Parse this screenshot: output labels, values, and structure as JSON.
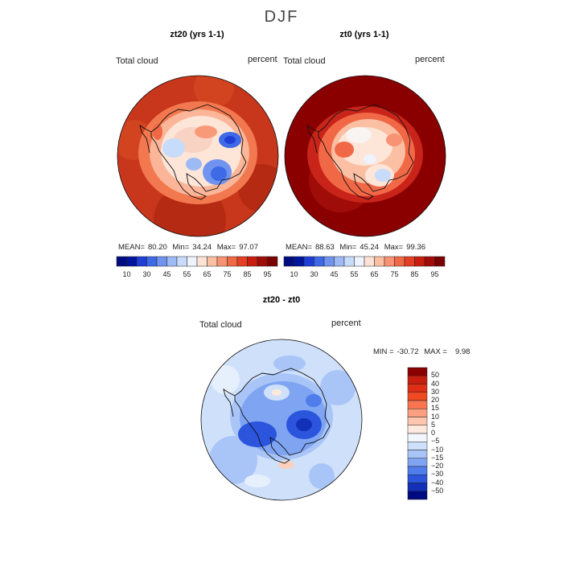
{
  "figure": {
    "title": "DJF"
  },
  "panels": [
    {
      "title": "zt20 (yrs 1-1)",
      "field_label": "Total cloud",
      "units": "percent",
      "stats": {
        "mean_label": "MEAN=",
        "mean": "80.20",
        "min_label": "Min=",
        "min": "34.24",
        "max_label": "Max=",
        "max": "97.07"
      }
    },
    {
      "title": "zt0 (yrs 1-1)",
      "field_label": "Total cloud",
      "units": "percent",
      "stats": {
        "mean_label": "MEAN=",
        "mean": "88.63",
        "min_label": "Min=",
        "min": "45.24",
        "max_label": "Max=",
        "max": "99.36"
      }
    },
    {
      "title": "zt20 - zt0",
      "field_label": "Total cloud",
      "units": "percent",
      "stats": {
        "min_label": "MIN =",
        "min": "-30.72",
        "max_label": "MAX =",
        "max": "9.98"
      }
    }
  ],
  "colorbar_abs": {
    "tick_labels": [
      "10",
      "30",
      "45",
      "55",
      "65",
      "75",
      "85",
      "95"
    ],
    "colors": [
      "#000d80",
      "#00149e",
      "#1f3ed6",
      "#3f6ae6",
      "#6f93ef",
      "#9dbaf5",
      "#c7dbfb",
      "#eef3fd",
      "#fde3d6",
      "#fbbfa3",
      "#f79273",
      "#f16847",
      "#e43f24",
      "#c81e0f",
      "#a00c08",
      "#7a0000"
    ]
  },
  "colorbar_diff": {
    "labels": [
      "50",
      "40",
      "30",
      "20",
      "15",
      "10",
      "5",
      "0",
      "−5",
      "−10",
      "−15",
      "−20",
      "−30",
      "−40",
      "−50"
    ],
    "colors": [
      "#8a0000",
      "#c81e0f",
      "#e02e16",
      "#ef4a22",
      "#f77550",
      "#fa9f80",
      "#fdc5ad",
      "#fde9dd",
      "#f2f6fd",
      "#cfe0fb",
      "#a9c5f7",
      "#7ea4f2",
      "#4f7deb",
      "#2a55dc",
      "#1230b8",
      "#000a80"
    ]
  },
  "chart_data": [
    {
      "type": "heatmap",
      "title": "zt20 (yrs 1-1)",
      "variable": "Total cloud",
      "units": "percent",
      "projection": "south polar stereographic",
      "mean": 80.2,
      "min": 34.24,
      "max": 97.07,
      "colorbar_ticks": [
        10,
        30,
        45,
        55,
        65,
        75,
        85,
        95
      ]
    },
    {
      "type": "heatmap",
      "title": "zt0 (yrs 1-1)",
      "variable": "Total cloud",
      "units": "percent",
      "projection": "south polar stereographic",
      "mean": 88.63,
      "min": 45.24,
      "max": 99.36,
      "colorbar_ticks": [
        10,
        30,
        45,
        55,
        65,
        75,
        85,
        95
      ]
    },
    {
      "type": "heatmap",
      "title": "zt20 - zt0",
      "variable": "Total cloud",
      "units": "percent",
      "projection": "south polar stereographic",
      "min": -30.72,
      "max": 9.98,
      "colorbar_ticks": [
        50,
        40,
        30,
        20,
        15,
        10,
        5,
        0,
        -5,
        -10,
        -15,
        -20,
        -30,
        -40,
        -50
      ]
    }
  ]
}
